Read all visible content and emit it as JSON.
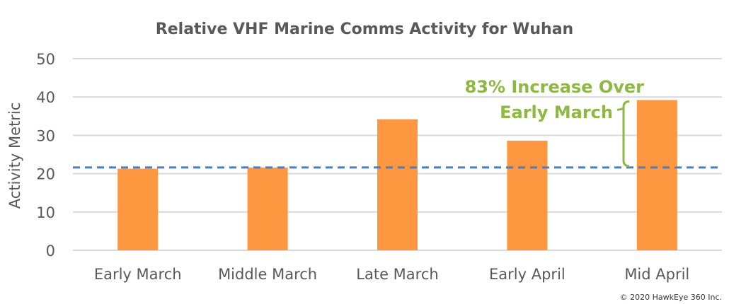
{
  "chart_data": {
    "type": "bar",
    "title": "Relative VHF Marine Comms Activity for Wuhan",
    "xlabel": "",
    "ylabel": "Activity Metric",
    "categories": [
      "Early March",
      "Middle March",
      "Late March",
      "Early April",
      "Mid April"
    ],
    "values": [
      21.3,
      21.6,
      34.2,
      28.6,
      39.2
    ],
    "ylim": [
      0,
      50
    ],
    "yticks": [
      0,
      10,
      20,
      30,
      40,
      50
    ],
    "grid": true,
    "reference_line": {
      "value": 21.6,
      "style": "dashed",
      "color": "#4a7ec4"
    },
    "annotation": {
      "lines": [
        "83% Increase Over",
        "Early March"
      ],
      "color": "#8db843"
    },
    "bar_color": "#ff9640",
    "footer": "© 2020 HawkEye 360 Inc."
  }
}
